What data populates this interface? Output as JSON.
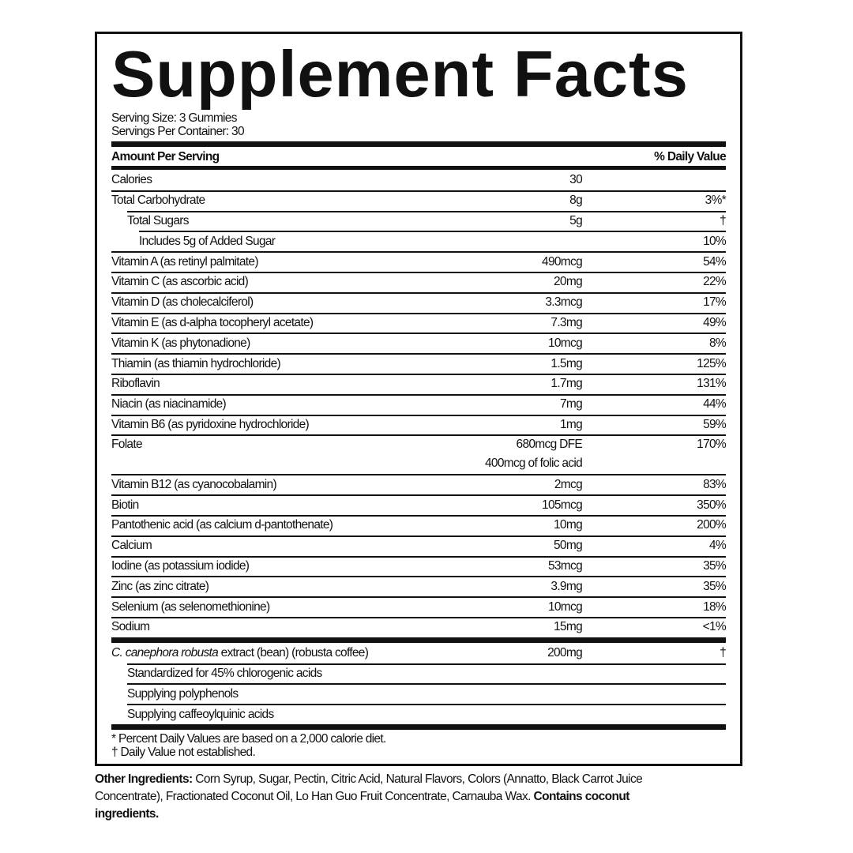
{
  "title": "Supplement Facts",
  "serving_size": "Serving Size: 3 Gummies",
  "servings_per_container": "Servings Per Container: 30",
  "header": {
    "amount": "Amount Per Serving",
    "dv": "% Daily Value"
  },
  "rows": [
    {
      "name": "Calories",
      "amount": "30",
      "dv": "",
      "indent": 0
    },
    {
      "name": "Total Carbohydrate",
      "amount": "8g",
      "dv": "3%*",
      "indent": 0
    },
    {
      "name": "Total Sugars",
      "amount": "5g",
      "dv": "†",
      "indent": 1
    },
    {
      "name": "Includes 5g of Added Sugar",
      "amount": "",
      "dv": "10%",
      "indent": 2
    },
    {
      "name": "Vitamin A (as retinyl palmitate)",
      "amount": "490mcg",
      "dv": "54%",
      "indent": 0
    },
    {
      "name": "Vitamin C (as ascorbic acid)",
      "amount": "20mg",
      "dv": "22%",
      "indent": 0
    },
    {
      "name": "Vitamin D (as cholecalciferol)",
      "amount": "3.3mcg",
      "dv": "17%",
      "indent": 0
    },
    {
      "name": "Vitamin E (as d-alpha tocopheryl acetate)",
      "amount": "7.3mg",
      "dv": "49%",
      "indent": 0
    },
    {
      "name": "Vitamin K (as phytonadione)",
      "amount": "10mcg",
      "dv": "8%",
      "indent": 0
    },
    {
      "name": "Thiamin (as thiamin hydrochloride)",
      "amount": "1.5mg",
      "dv": "125%",
      "indent": 0
    },
    {
      "name": "Riboflavin",
      "amount": "1.7mg",
      "dv": "131%",
      "indent": 0
    },
    {
      "name": "Niacin (as niacinamide)",
      "amount": "7mg",
      "dv": "44%",
      "indent": 0
    },
    {
      "name": "Vitamin B6 (as pyridoxine hydrochloride)",
      "amount": "1mg",
      "dv": "59%",
      "indent": 0
    },
    {
      "name": "Folate",
      "amount": "680mcg DFE",
      "amount2": "400mcg of folic acid",
      "dv": "170%",
      "indent": 0
    },
    {
      "name": "Vitamin B12 (as cyanocobalamin)",
      "amount": "2mcg",
      "dv": "83%",
      "indent": 0
    },
    {
      "name": "Biotin",
      "amount": "105mcg",
      "dv": "350%",
      "indent": 0
    },
    {
      "name": "Pantothenic acid (as calcium d-pantothenate)",
      "amount": "10mg",
      "dv": "200%",
      "indent": 0
    },
    {
      "name": "Calcium",
      "amount": "50mg",
      "dv": "4%",
      "indent": 0
    },
    {
      "name": "Iodine (as potassium iodide)",
      "amount": "53mcg",
      "dv": "35%",
      "indent": 0
    },
    {
      "name": "Zinc (as zinc citrate)",
      "amount": "3.9mg",
      "dv": "35%",
      "indent": 0
    },
    {
      "name": "Selenium (as selenomethionine)",
      "amount": "10mcg",
      "dv": "18%",
      "indent": 0
    },
    {
      "name": "Sodium",
      "amount": "15mg",
      "dv": "<1%",
      "indent": 0
    }
  ],
  "blend": [
    {
      "italic": "C. canephora robusta",
      "name": " extract (bean) (robusta coffee)",
      "amount": "200mg",
      "dv": "†",
      "indent": 0
    },
    {
      "name": "Standardized for 45% chlorogenic acids",
      "amount": "",
      "dv": "",
      "indent": 1
    },
    {
      "name": "Supplying polyphenols",
      "amount": "",
      "dv": "",
      "indent": 1
    },
    {
      "name": "Supplying caffeoylquinic acids",
      "amount": "",
      "dv": "",
      "indent": 1
    }
  ],
  "footnotes": [
    "* Percent Daily Values are based on a 2,000 calorie diet.",
    "† Daily Value not established."
  ],
  "other_ingredients": {
    "label": "Other Ingredients:",
    "text": " Corn Syrup, Sugar, Pectin, Citric Acid, Natural Flavors, Colors (Annatto, Black Carrot Juice Concentrate), Fractionated Coconut Oil, Lo Han Guo Fruit Concentrate, Carnauba Wax. ",
    "contains": "Contains coconut ingredients."
  }
}
